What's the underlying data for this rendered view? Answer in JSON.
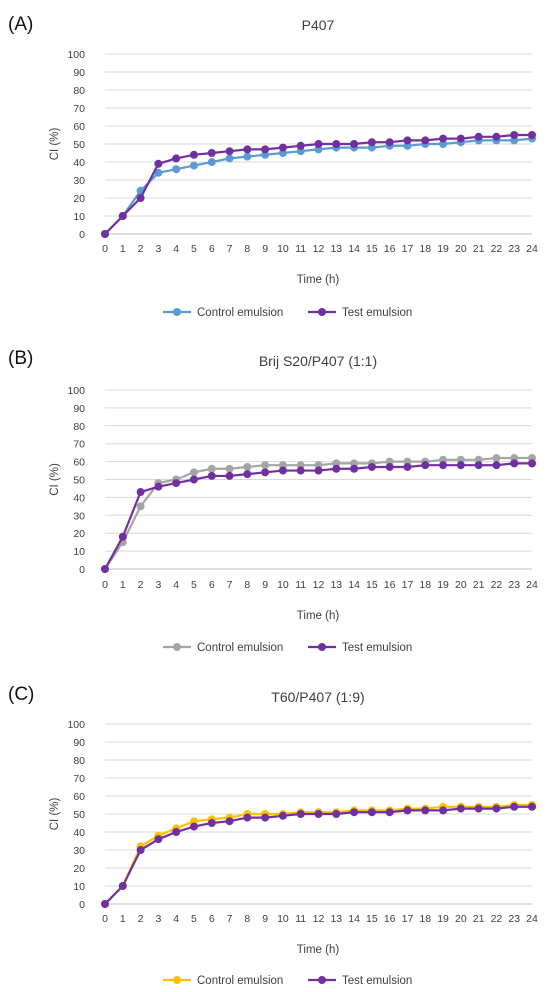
{
  "figure": {
    "panels": [
      "(A)",
      "(B)",
      "(C)"
    ]
  },
  "chart_data": [
    {
      "type": "line",
      "panel": "(A)",
      "title": "P407",
      "xlabel": "Time (h)",
      "ylabel": "CI (%)",
      "ylim": [
        0,
        100
      ],
      "yticks": [
        0,
        10,
        20,
        30,
        40,
        50,
        60,
        70,
        80,
        90,
        100
      ],
      "x": [
        0,
        1,
        2,
        3,
        4,
        5,
        6,
        7,
        8,
        9,
        10,
        11,
        12,
        13,
        14,
        15,
        16,
        17,
        18,
        19,
        20,
        21,
        22,
        23,
        24
      ],
      "gridlines": "horizontal",
      "legend_position": "bottom",
      "series": [
        {
          "name": "Control emulsion",
          "color": "#5b9bd5",
          "values": [
            0,
            10,
            24,
            34,
            36,
            38,
            40,
            42,
            43,
            44,
            45,
            46,
            47,
            48,
            48,
            48,
            49,
            49,
            50,
            50,
            51,
            52,
            52,
            52,
            53
          ]
        },
        {
          "name": "Test emulsion",
          "color": "#7030a0",
          "values": [
            0,
            10,
            20,
            39,
            42,
            44,
            45,
            46,
            47,
            47,
            48,
            49,
            50,
            50,
            50,
            51,
            51,
            52,
            52,
            53,
            53,
            54,
            54,
            55,
            55
          ]
        }
      ]
    },
    {
      "type": "line",
      "panel": "(B)",
      "title": "Brij S20/P407 (1:1)",
      "xlabel": "Time (h)",
      "ylabel": "CI (%)",
      "ylim": [
        0,
        100
      ],
      "yticks": [
        0,
        10,
        20,
        30,
        40,
        50,
        60,
        70,
        80,
        90,
        100
      ],
      "x": [
        0,
        1,
        2,
        3,
        4,
        5,
        6,
        7,
        8,
        9,
        10,
        11,
        12,
        13,
        14,
        15,
        16,
        17,
        18,
        19,
        20,
        21,
        22,
        23,
        24
      ],
      "gridlines": "horizontal",
      "legend_position": "bottom",
      "series": [
        {
          "name": "Control emulsion",
          "color": "#a5a5a5",
          "values": [
            0,
            15,
            35,
            48,
            50,
            54,
            56,
            56,
            57,
            58,
            58,
            58,
            58,
            59,
            59,
            59,
            60,
            60,
            60,
            61,
            61,
            61,
            62,
            62,
            62
          ]
        },
        {
          "name": "Test emulsion",
          "color": "#7030a0",
          "values": [
            0,
            18,
            43,
            46,
            48,
            50,
            52,
            52,
            53,
            54,
            55,
            55,
            55,
            56,
            56,
            57,
            57,
            57,
            58,
            58,
            58,
            58,
            58,
            59,
            59
          ]
        }
      ]
    },
    {
      "type": "line",
      "panel": "(C)",
      "title": "T60/P407 (1:9)",
      "xlabel": "Time (h)",
      "ylabel": "CI (%)",
      "ylim": [
        0,
        100
      ],
      "yticks": [
        0,
        10,
        20,
        30,
        40,
        50,
        60,
        70,
        80,
        90,
        100
      ],
      "x": [
        0,
        1,
        2,
        3,
        4,
        5,
        6,
        7,
        8,
        9,
        10,
        11,
        12,
        13,
        14,
        15,
        16,
        17,
        18,
        19,
        20,
        21,
        22,
        23,
        24
      ],
      "gridlines": "horizontal",
      "legend_position": "bottom",
      "series": [
        {
          "name": "Control emulsion",
          "color": "#ffc000",
          "values": [
            0,
            10,
            32,
            38,
            42,
            46,
            47,
            48,
            50,
            50,
            50,
            51,
            51,
            51,
            52,
            52,
            52,
            53,
            53,
            54,
            54,
            54,
            54,
            55,
            55
          ]
        },
        {
          "name": "Test emulsion",
          "color": "#7030a0",
          "values": [
            0,
            10,
            30,
            36,
            40,
            43,
            45,
            46,
            48,
            48,
            49,
            50,
            50,
            50,
            51,
            51,
            51,
            52,
            52,
            52,
            53,
            53,
            53,
            54,
            54
          ]
        }
      ]
    }
  ]
}
